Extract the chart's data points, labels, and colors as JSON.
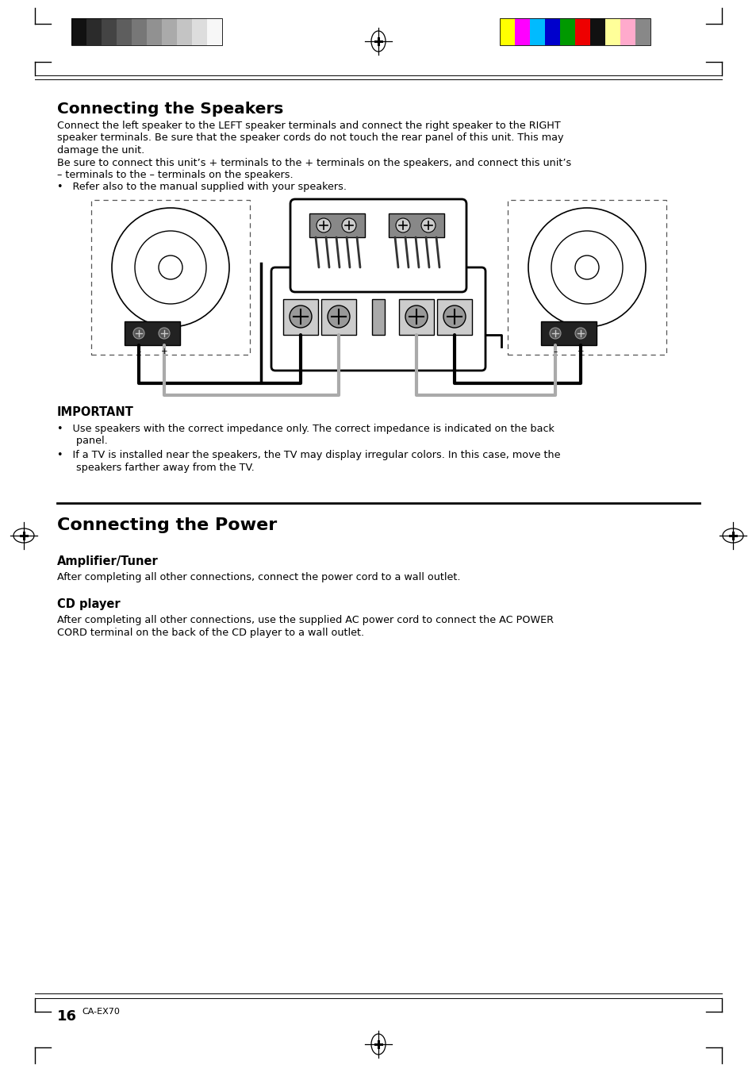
{
  "page_bg": "#ffffff",
  "title1": "Connecting the Speakers",
  "para1_line1": "Connect the left speaker to the LEFT speaker terminals and connect the right speaker to the RIGHT",
  "para1_line2": "speaker terminals. Be sure that the speaker cords do not touch the rear panel of this unit. This may",
  "para1_line3": "damage the unit.",
  "para1_line4": "Be sure to connect this unit’s + terminals to the + terminals on the speakers, and connect this unit’s",
  "para1_line5": "– terminals to the – terminals on the speakers.",
  "bullet1": "•   Refer also to the manual supplied with your speakers.",
  "important_head": "IMPORTANT",
  "important_b1": "•   Use speakers with the correct impedance only. The correct impedance is indicated on the back",
  "important_b1b": "      panel.",
  "important_b2": "•   If a TV is installed near the speakers, the TV may display irregular colors. In this case, move the",
  "important_b2b": "      speakers farther away from the TV.",
  "title2": "Connecting the Power",
  "sub1": "Amplifier/Tuner",
  "sub1_text": "After completing all other connections, connect the power cord to a wall outlet.",
  "sub2": "CD player",
  "sub2_text1": "After completing all other connections, use the supplied AC power cord to connect the AC POWER",
  "sub2_text2": "CORD terminal on the back of the CD player to a wall outlet.",
  "page_num": "16",
  "page_label": "CA-EX70",
  "gray_colors": [
    "#111111",
    "#2b2b2b",
    "#444444",
    "#5e5e5e",
    "#777777",
    "#919191",
    "#aaaaaa",
    "#c4c4c4",
    "#dddddd",
    "#f7f7f7"
  ],
  "color_bars": [
    "#ffff00",
    "#ff00ff",
    "#00bbff",
    "#0000cc",
    "#009900",
    "#ee0000",
    "#111111",
    "#ffff99",
    "#ffaacc",
    "#888888"
  ]
}
